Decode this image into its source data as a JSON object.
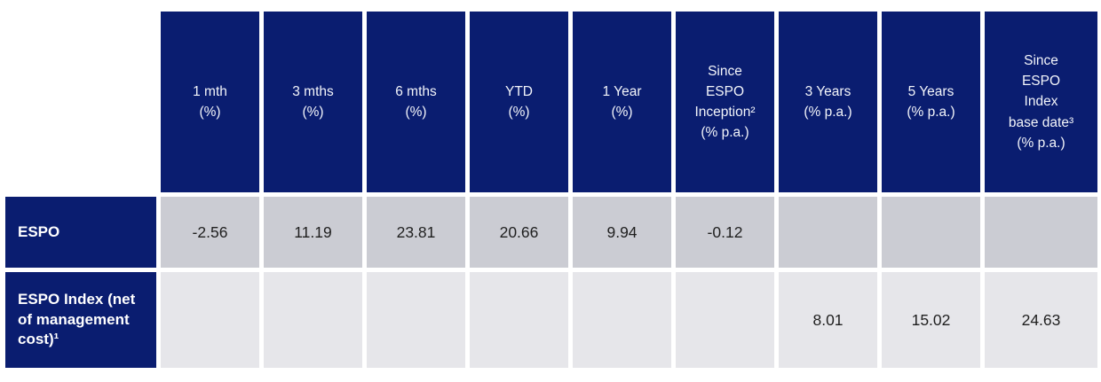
{
  "meta": {
    "component": "fund-performance-table"
  },
  "colors": {
    "navy": "#0a1d70",
    "header_text": "#f3f5fa",
    "row1_bg": "#cbccd3",
    "row2_bg": "#e6e6ea",
    "value_text": "#1f1f1f",
    "background": "#ffffff"
  },
  "table": {
    "headers": [
      "1 mth\n(%)",
      "3 mths\n(%)",
      "6 mths\n(%)",
      "YTD\n(%)",
      "1 Year\n(%)",
      "Since\nESPO\nInception²\n(% p.a.)",
      "3 Years\n(% p.a.)",
      "5 Years\n(% p.a.)",
      "Since\nESPO\nIndex\nbase date³\n(% p.a.)"
    ],
    "rows": [
      {
        "label": "ESPO",
        "values": [
          "-2.56",
          "11.19",
          "23.81",
          "20.66",
          "9.94",
          "-0.12",
          "",
          "",
          ""
        ]
      },
      {
        "label": "ESPO Index (net of management cost)¹",
        "values": [
          "",
          "",
          "",
          "",
          "",
          "",
          "8.01",
          "15.02",
          "24.63"
        ]
      }
    ]
  },
  "chart_data": {
    "type": "table",
    "title": "ESPO performance table",
    "columns": [
      "1 mth (%)",
      "3 mths (%)",
      "6 mths (%)",
      "YTD (%)",
      "1 Year (%)",
      "Since ESPO Inception² (% p.a.)",
      "3 Years (% p.a.)",
      "5 Years (% p.a.)",
      "Since ESPO Index base date³ (% p.a.)"
    ],
    "rows": [
      {
        "name": "ESPO",
        "values": [
          -2.56,
          11.19,
          23.81,
          20.66,
          9.94,
          -0.12,
          null,
          null,
          null
        ]
      },
      {
        "name": "ESPO Index (net of management cost)¹",
        "values": [
          null,
          null,
          null,
          null,
          null,
          null,
          8.01,
          15.02,
          24.63
        ]
      }
    ]
  }
}
